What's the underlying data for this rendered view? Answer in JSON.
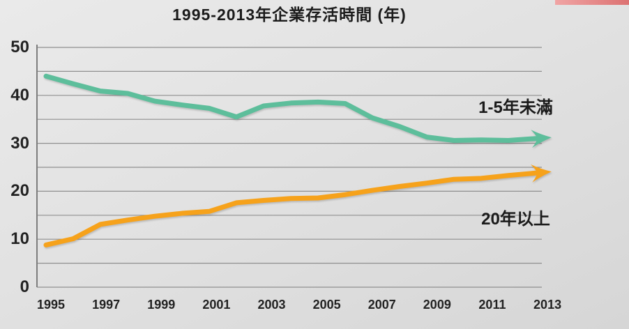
{
  "chart_data": {
    "type": "line",
    "title": "1995-2013年企業存活時間 (年)",
    "x": [
      1995,
      1996,
      1997,
      1998,
      1999,
      2000,
      2001,
      2002,
      2003,
      2004,
      2005,
      2006,
      2007,
      2008,
      2009,
      2010,
      2011,
      2012,
      2013
    ],
    "x_tick_labels": [
      "1995",
      "1997",
      "1999",
      "2001",
      "2003",
      "2005",
      "2007",
      "2009",
      "2011",
      "2013"
    ],
    "y_ticks": [
      0,
      10,
      20,
      30,
      40,
      50
    ],
    "y_gridlines": [
      0,
      5,
      10,
      15,
      20,
      25,
      30,
      35,
      40,
      45,
      50
    ],
    "ylim": [
      0,
      50
    ],
    "xlim": [
      1995,
      2013
    ],
    "grid": true,
    "legend_position": "inline-right",
    "series": [
      {
        "name": "1-5年未滿",
        "color": "#5dbe9b",
        "end_arrow": true,
        "values": [
          44,
          42.4,
          40.9,
          40.4,
          38.8,
          38,
          37.3,
          35.5,
          37.8,
          38.4,
          38.6,
          38.3,
          35.3,
          33.5,
          31.3,
          30.6,
          30.7,
          30.6,
          31
        ]
      },
      {
        "name": "20年以上",
        "color": "#f6a21b",
        "end_arrow": true,
        "values": [
          8.8,
          10.1,
          13.1,
          14,
          14.8,
          15.4,
          15.8,
          17.6,
          18.1,
          18.5,
          18.6,
          19.3,
          20.2,
          21,
          21.7,
          22.5,
          22.7,
          23.3,
          23.8
        ]
      }
    ],
    "annotations": [
      {
        "text": "1-5年未滿",
        "year": 2010.5,
        "value": 38.4
      },
      {
        "text": "20年以上",
        "year": 2010.6,
        "value": 15.1
      }
    ]
  },
  "decor": {
    "top_right_bar_colors": [
      "#f0a4a4",
      "#dc7272"
    ]
  }
}
